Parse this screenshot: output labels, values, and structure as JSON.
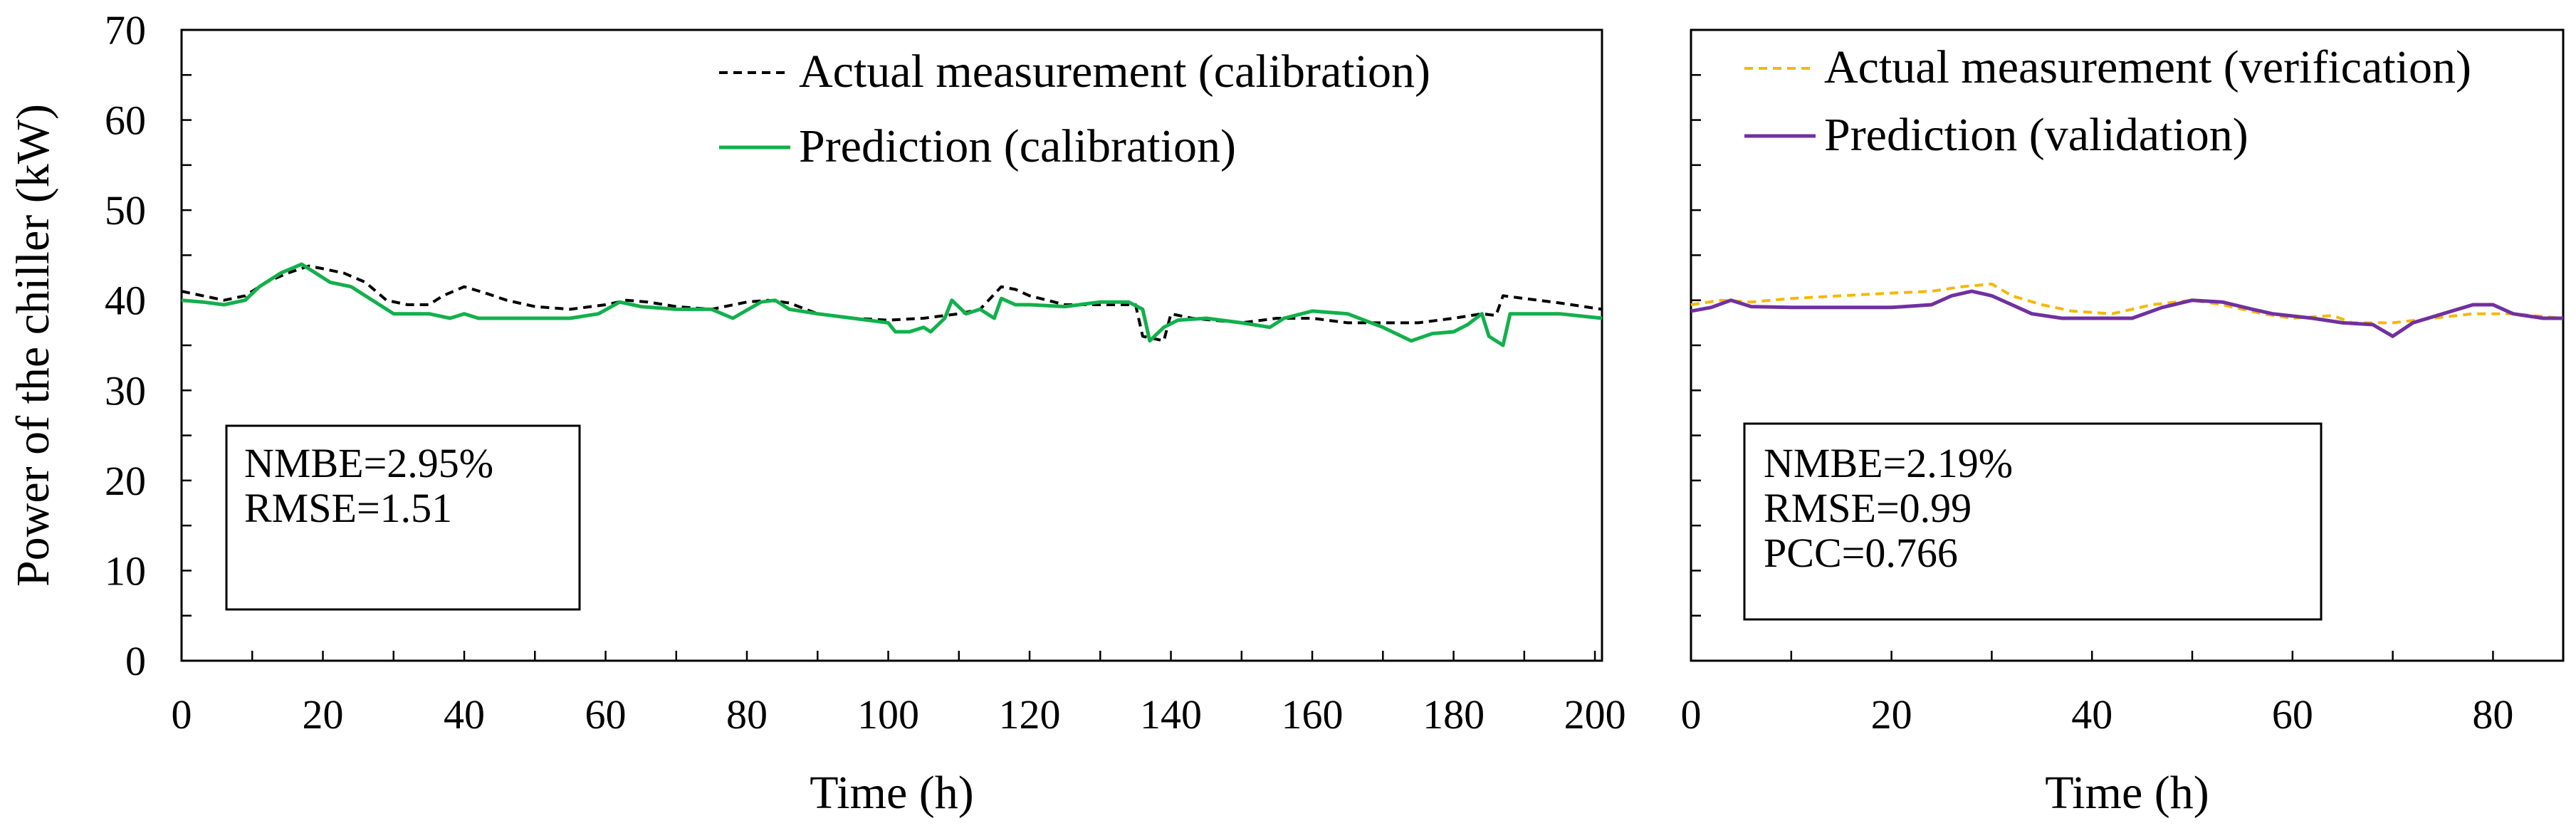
{
  "chart_data": [
    {
      "type": "line",
      "panel": "calibration",
      "ylabel": "Power of the chiller (kW)",
      "xlabel": "Time (h)",
      "xlim": [
        0,
        201
      ],
      "ylim": [
        0,
        70
      ],
      "xticks": [
        0,
        20,
        40,
        60,
        80,
        100,
        120,
        140,
        160,
        180,
        200
      ],
      "yticks": [
        0,
        10,
        20,
        30,
        40,
        50,
        60,
        70
      ],
      "legend_position": "top-right",
      "series": [
        {
          "name": "Actual measurement (calibration)",
          "color": "#000000",
          "style": "dashed",
          "points": [
            [
              0,
              41
            ],
            [
              3,
              40.5
            ],
            [
              6,
              40
            ],
            [
              9,
              40.5
            ],
            [
              12,
              42
            ],
            [
              15,
              43
            ],
            [
              18,
              43.8
            ],
            [
              20,
              43.5
            ],
            [
              23,
              43
            ],
            [
              26,
              42
            ],
            [
              29,
              40
            ],
            [
              32,
              39.5
            ],
            [
              35,
              39.5
            ],
            [
              37,
              40.5
            ],
            [
              40,
              41.5
            ],
            [
              43,
              40.8
            ],
            [
              46,
              40
            ],
            [
              50,
              39.3
            ],
            [
              55,
              39
            ],
            [
              60,
              39.5
            ],
            [
              63,
              40
            ],
            [
              66,
              39.8
            ],
            [
              70,
              39.3
            ],
            [
              75,
              39
            ],
            [
              80,
              39.8
            ],
            [
              83,
              40
            ],
            [
              86,
              39.7
            ],
            [
              90,
              38.5
            ],
            [
              95,
              38
            ],
            [
              100,
              37.8
            ],
            [
              105,
              38
            ],
            [
              110,
              38.5
            ],
            [
              113,
              39
            ],
            [
              116,
              41.5
            ],
            [
              118,
              41.2
            ],
            [
              120,
              40.5
            ],
            [
              125,
              39.5
            ],
            [
              130,
              39.5
            ],
            [
              135,
              39.5
            ],
            [
              136,
              36
            ],
            [
              139,
              35.5
            ],
            [
              140,
              38.5
            ],
            [
              143,
              38
            ],
            [
              150,
              37.5
            ],
            [
              155,
              38
            ],
            [
              160,
              38
            ],
            [
              165,
              37.5
            ],
            [
              170,
              37.5
            ],
            [
              175,
              37.5
            ],
            [
              180,
              38
            ],
            [
              184,
              38.5
            ],
            [
              186,
              38.3
            ],
            [
              187,
              40.5
            ],
            [
              190,
              40.2
            ],
            [
              195,
              39.7
            ],
            [
              201,
              39
            ]
          ]
        },
        {
          "name": "Prediction (calibration)",
          "color": "#12b04b",
          "style": "solid",
          "points": [
            [
              0,
              40
            ],
            [
              3,
              39.8
            ],
            [
              6,
              39.5
            ],
            [
              9,
              40
            ],
            [
              11,
              41.5
            ],
            [
              14,
              43
            ],
            [
              17,
              44
            ],
            [
              19,
              43
            ],
            [
              21,
              42
            ],
            [
              24,
              41.5
            ],
            [
              27,
              40
            ],
            [
              30,
              38.5
            ],
            [
              35,
              38.5
            ],
            [
              38,
              38
            ],
            [
              40,
              38.5
            ],
            [
              42,
              38
            ],
            [
              45,
              38
            ],
            [
              50,
              38
            ],
            [
              55,
              38
            ],
            [
              59,
              38.5
            ],
            [
              62,
              39.8
            ],
            [
              65,
              39.3
            ],
            [
              70,
              39
            ],
            [
              75,
              39
            ],
            [
              78,
              38
            ],
            [
              82,
              39.8
            ],
            [
              84,
              40
            ],
            [
              86,
              39
            ],
            [
              90,
              38.5
            ],
            [
              95,
              38
            ],
            [
              100,
              37.5
            ],
            [
              101,
              36.5
            ],
            [
              103,
              36.5
            ],
            [
              105,
              37
            ],
            [
              106,
              36.5
            ],
            [
              108,
              38
            ],
            [
              109,
              40
            ],
            [
              111,
              38.5
            ],
            [
              113,
              39
            ],
            [
              115,
              38
            ],
            [
              116,
              40.2
            ],
            [
              118,
              39.5
            ],
            [
              120,
              39.5
            ],
            [
              125,
              39.3
            ],
            [
              130,
              39.8
            ],
            [
              134,
              39.8
            ],
            [
              136,
              39
            ],
            [
              137,
              35.5
            ],
            [
              139,
              37
            ],
            [
              141,
              37.8
            ],
            [
              145,
              38
            ],
            [
              150,
              37.5
            ],
            [
              154,
              37
            ],
            [
              156,
              38
            ],
            [
              160,
              38.8
            ],
            [
              165,
              38.5
            ],
            [
              170,
              37
            ],
            [
              174,
              35.5
            ],
            [
              177,
              36.3
            ],
            [
              180,
              36.5
            ],
            [
              182,
              37.3
            ],
            [
              184,
              38.5
            ],
            [
              185,
              36
            ],
            [
              187,
              35
            ],
            [
              188,
              38.5
            ],
            [
              190,
              38.5
            ],
            [
              195,
              38.5
            ],
            [
              201,
              38
            ]
          ]
        }
      ],
      "stats": [
        "NMBE=2.95%",
        "RMSE=1.51"
      ]
    },
    {
      "type": "line",
      "panel": "verification",
      "ylabel": "",
      "xlabel": "Time (h)",
      "xlim": [
        0,
        87
      ],
      "ylim": [
        0,
        70
      ],
      "xticks": [
        0,
        20,
        40,
        60,
        80
      ],
      "yticks": [
        0,
        10,
        20,
        30,
        40,
        50,
        60,
        70
      ],
      "legend_position": "top-right",
      "series": [
        {
          "name": "Actual measurement (verification)",
          "color": "#f5b800",
          "style": "dashed",
          "points": [
            [
              0,
              39.5
            ],
            [
              3,
              40
            ],
            [
              6,
              39.8
            ],
            [
              10,
              40.2
            ],
            [
              15,
              40.5
            ],
            [
              20,
              40.8
            ],
            [
              24,
              41
            ],
            [
              27,
              41.5
            ],
            [
              30,
              41.8
            ],
            [
              32,
              40.5
            ],
            [
              35,
              39.5
            ],
            [
              38,
              38.8
            ],
            [
              42,
              38.5
            ],
            [
              46,
              39.5
            ],
            [
              50,
              40
            ],
            [
              53,
              39.5
            ],
            [
              57,
              38.5
            ],
            [
              60,
              38
            ],
            [
              64,
              38.3
            ],
            [
              66,
              37.5
            ],
            [
              70,
              37.5
            ],
            [
              74,
              38
            ],
            [
              78,
              38.5
            ],
            [
              82,
              38.5
            ],
            [
              87,
              38
            ]
          ]
        },
        {
          "name": "Prediction (validation)",
          "color": "#7030a0",
          "style": "solid",
          "points": [
            [
              0,
              38.8
            ],
            [
              2,
              39.2
            ],
            [
              4,
              40
            ],
            [
              6,
              39.3
            ],
            [
              10,
              39.2
            ],
            [
              15,
              39.2
            ],
            [
              20,
              39.2
            ],
            [
              24,
              39.5
            ],
            [
              26,
              40.5
            ],
            [
              28,
              41
            ],
            [
              30,
              40.5
            ],
            [
              32,
              39.5
            ],
            [
              34,
              38.5
            ],
            [
              37,
              38
            ],
            [
              40,
              38
            ],
            [
              44,
              38
            ],
            [
              47,
              39.2
            ],
            [
              50,
              40
            ],
            [
              53,
              39.8
            ],
            [
              56,
              39
            ],
            [
              58,
              38.5
            ],
            [
              62,
              38
            ],
            [
              65,
              37.5
            ],
            [
              68,
              37.3
            ],
            [
              70,
              36
            ],
            [
              72,
              37.5
            ],
            [
              75,
              38.5
            ],
            [
              78,
              39.5
            ],
            [
              80,
              39.5
            ],
            [
              82,
              38.5
            ],
            [
              85,
              38
            ],
            [
              87,
              38
            ]
          ]
        }
      ],
      "stats": [
        "NMBE=2.19%",
        "RMSE=0.99",
        "PCC=0.766"
      ]
    }
  ]
}
